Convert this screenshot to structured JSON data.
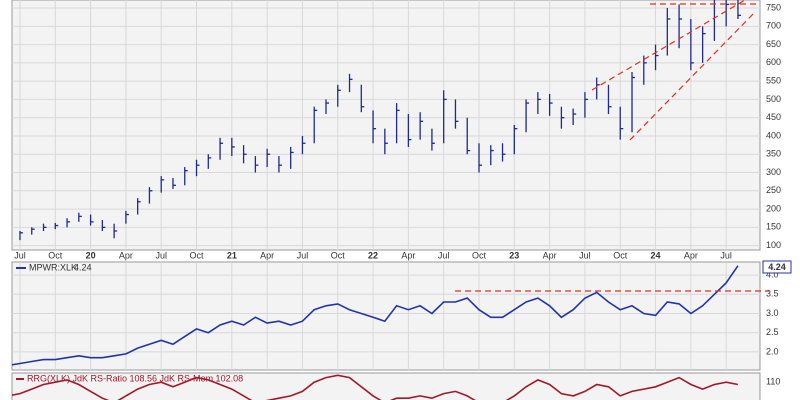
{
  "chart_data": [
    {
      "type": "ohlc",
      "x": [
        "2019-06",
        "2019-07",
        "2019-08",
        "2019-09",
        "2019-10",
        "2019-11",
        "2019-12",
        "2020-01",
        "2020-02",
        "2020-03",
        "2020-04",
        "2020-05",
        "2020-06",
        "2020-07",
        "2020-08",
        "2020-09",
        "2020-10",
        "2020-11",
        "2020-12",
        "2021-01",
        "2021-02",
        "2021-03",
        "2021-04",
        "2021-05",
        "2021-06",
        "2021-07",
        "2021-08",
        "2021-09",
        "2021-10",
        "2021-11",
        "2021-12",
        "2022-01",
        "2022-02",
        "2022-03",
        "2022-04",
        "2022-05",
        "2022-06",
        "2022-07",
        "2022-08",
        "2022-09",
        "2022-10",
        "2022-11",
        "2022-12",
        "2023-01",
        "2023-02",
        "2023-03",
        "2023-04",
        "2023-05",
        "2023-06",
        "2023-07",
        "2023-08",
        "2023-09",
        "2023-10",
        "2023-11",
        "2023-12",
        "2024-01",
        "2024-02",
        "2024-03",
        "2024-04",
        "2024-05",
        "2024-06",
        "2024-07",
        "2024-08"
      ],
      "series": [
        {
          "name": "high",
          "color": "#1f2a8a",
          "values": [
            125,
            140,
            150,
            160,
            162,
            175,
            190,
            185,
            170,
            160,
            195,
            230,
            260,
            290,
            285,
            315,
            335,
            350,
            395,
            395,
            375,
            345,
            365,
            345,
            370,
            400,
            480,
            500,
            540,
            570,
            540,
            470,
            420,
            490,
            460,
            465,
            420,
            525,
            500,
            450,
            380,
            375,
            380,
            430,
            500,
            520,
            515,
            480,
            475,
            520,
            560,
            540,
            480,
            575,
            620,
            650,
            750,
            760,
            720,
            700,
            790,
            800,
            790
          ]
        },
        {
          "name": "low",
          "color": "#1f2a8a",
          "values": [
            105,
            115,
            130,
            140,
            145,
            150,
            165,
            155,
            140,
            120,
            160,
            185,
            215,
            245,
            255,
            265,
            290,
            310,
            335,
            345,
            325,
            300,
            315,
            300,
            310,
            350,
            380,
            460,
            480,
            520,
            465,
            380,
            350,
            380,
            370,
            390,
            360,
            380,
            420,
            350,
            300,
            320,
            330,
            350,
            410,
            460,
            455,
            420,
            430,
            450,
            500,
            460,
            390,
            410,
            540,
            580,
            620,
            640,
            580,
            600,
            660,
            700,
            720
          ]
        },
        {
          "name": "close",
          "color": "#1f2a8a",
          "values": [
            115,
            135,
            145,
            150,
            155,
            165,
            180,
            165,
            150,
            140,
            185,
            220,
            250,
            280,
            265,
            305,
            320,
            340,
            380,
            370,
            350,
            320,
            350,
            320,
            355,
            380,
            470,
            490,
            525,
            555,
            480,
            420,
            380,
            470,
            390,
            440,
            380,
            500,
            440,
            360,
            320,
            360,
            350,
            420,
            490,
            500,
            490,
            450,
            460,
            500,
            540,
            480,
            420,
            560,
            600,
            620,
            720,
            720,
            600,
            680,
            790,
            760,
            730
          ]
        }
      ],
      "xticks": [
        {
          "value": "2019-07",
          "label": "Jul"
        },
        {
          "value": "2019-10",
          "label": "Oct"
        },
        {
          "value": "2020-01",
          "label": "20"
        },
        {
          "value": "2020-04",
          "label": "Apr"
        },
        {
          "value": "2020-07",
          "label": "Jul"
        },
        {
          "value": "2020-10",
          "label": "Oct"
        },
        {
          "value": "2021-01",
          "label": "21"
        },
        {
          "value": "2021-04",
          "label": "Apr"
        },
        {
          "value": "2021-07",
          "label": "Jul"
        },
        {
          "value": "2021-10",
          "label": "Oct"
        },
        {
          "value": "2022-01",
          "label": "22"
        },
        {
          "value": "2022-04",
          "label": "Apr"
        },
        {
          "value": "2022-07",
          "label": "Jul"
        },
        {
          "value": "2022-10",
          "label": "Oct"
        },
        {
          "value": "2023-01",
          "label": "23"
        },
        {
          "value": "2023-04",
          "label": "Apr"
        },
        {
          "value": "2023-07",
          "label": "Jul"
        },
        {
          "value": "2023-10",
          "label": "Oct"
        },
        {
          "value": "2024-01",
          "label": "24"
        },
        {
          "value": "2024-04",
          "label": "Apr"
        },
        {
          "value": "2024-07",
          "label": "Jul"
        }
      ],
      "ylim": [
        88,
        772
      ],
      "yticks": [
        100,
        150,
        200,
        250,
        300,
        350,
        400,
        450,
        500,
        550,
        600,
        650,
        700,
        750
      ],
      "grid": true
    },
    {
      "type": "line",
      "series": [
        {
          "name": "MPWR:XLK",
          "color": "#2233aa",
          "value_labels_last": "4.24",
          "values": [
            1.65,
            1.7,
            1.75,
            1.8,
            1.8,
            1.85,
            1.9,
            1.85,
            1.85,
            1.9,
            1.95,
            2.1,
            2.2,
            2.3,
            2.2,
            2.4,
            2.6,
            2.5,
            2.7,
            2.8,
            2.7,
            2.9,
            2.75,
            2.8,
            2.7,
            2.8,
            3.1,
            3.2,
            3.25,
            3.1,
            3.0,
            2.9,
            2.8,
            3.2,
            3.1,
            3.2,
            3.0,
            3.3,
            3.3,
            3.4,
            3.1,
            2.9,
            2.9,
            3.1,
            3.3,
            3.4,
            3.2,
            2.9,
            3.1,
            3.4,
            3.55,
            3.3,
            3.1,
            3.2,
            3.0,
            2.95,
            3.3,
            3.25,
            3.0,
            3.2,
            3.5,
            3.8,
            4.24
          ]
        }
      ],
      "ylim": [
        1.53,
        4.34
      ],
      "yticks": [
        {
          "value": 2,
          "label": "2.0"
        },
        2.5,
        {
          "value": 3,
          "label": "3.0"
        },
        3.5,
        {
          "value": 4,
          "label": "4.0"
        }
      ],
      "grid": true
    },
    {
      "type": "line",
      "title": "RRG(XLK) JdK RS-Ratio 108.56 JdK RS-Mom 102.08",
      "series": [
        {
          "name": "RS-Ratio",
          "color": "#a0182c",
          "values": [
            104,
            105,
            107,
            109,
            110,
            111,
            109,
            106,
            103,
            101,
            104,
            107,
            109,
            110,
            108,
            110,
            112,
            111,
            109,
            107,
            104,
            101,
            102,
            103,
            104,
            106,
            110,
            112,
            113,
            112,
            108,
            104,
            101,
            103,
            103,
            104,
            103,
            105,
            106,
            104,
            101,
            100,
            101,
            104,
            108,
            111,
            109,
            105,
            104,
            106,
            109,
            108,
            104,
            106,
            107,
            108,
            110,
            112,
            109,
            107,
            109,
            110,
            109
          ]
        }
      ],
      "ylim": [
        97,
        114
      ],
      "yticks": [
        110
      ]
    }
  ]
}
